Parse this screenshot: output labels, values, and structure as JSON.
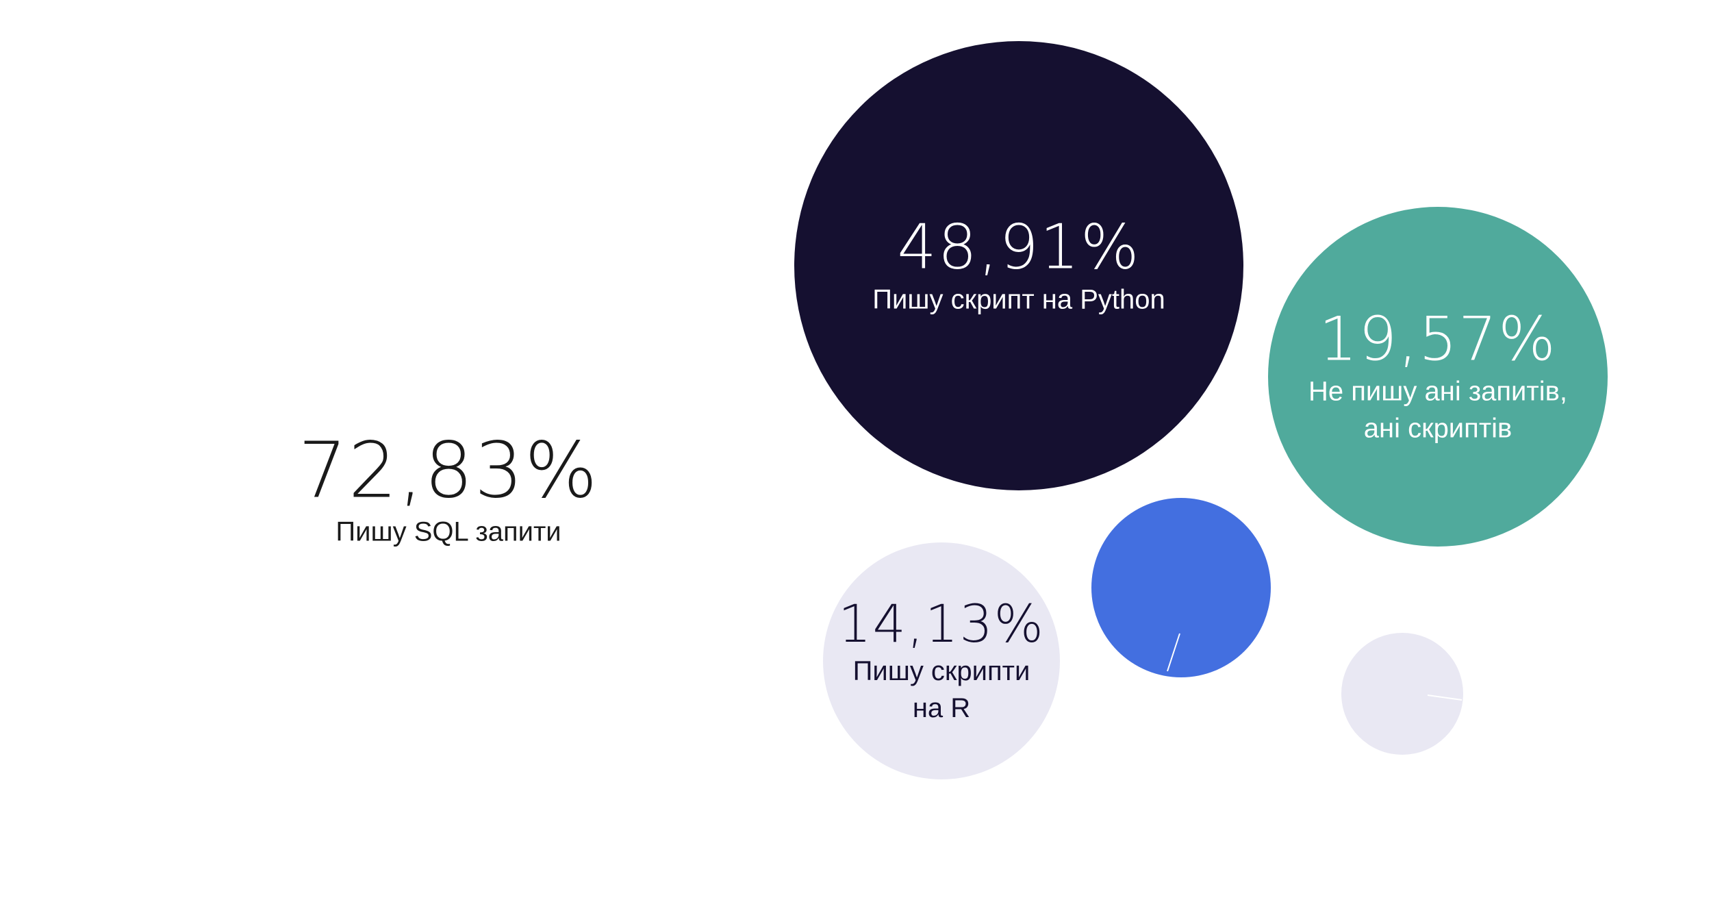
{
  "chart_data": {
    "type": "bubble",
    "series": [
      {
        "value": "72,83%",
        "label": "Пишу SQL запити",
        "color": "#ffffff",
        "text_color": "#1a1a1a"
      },
      {
        "value": "48,91%",
        "label": "Пишу скрипт на Python",
        "color": "#151030",
        "text_color": "#ffffff"
      },
      {
        "value": "19,57%",
        "label": "Не пишу ані запитів,\nані скриптів",
        "color": "#50aa9c",
        "text_color": "#ffffff"
      },
      {
        "value": "14,13%",
        "label": "Пишу скрипти\nна R",
        "color": "#e9e8f3",
        "text_color": "#151030"
      },
      {
        "value": "",
        "label": "",
        "color": "#436fe0",
        "text_color": "#ffffff"
      },
      {
        "value": "",
        "label": "",
        "color": "#e9e8f3",
        "text_color": "#151030"
      }
    ]
  }
}
